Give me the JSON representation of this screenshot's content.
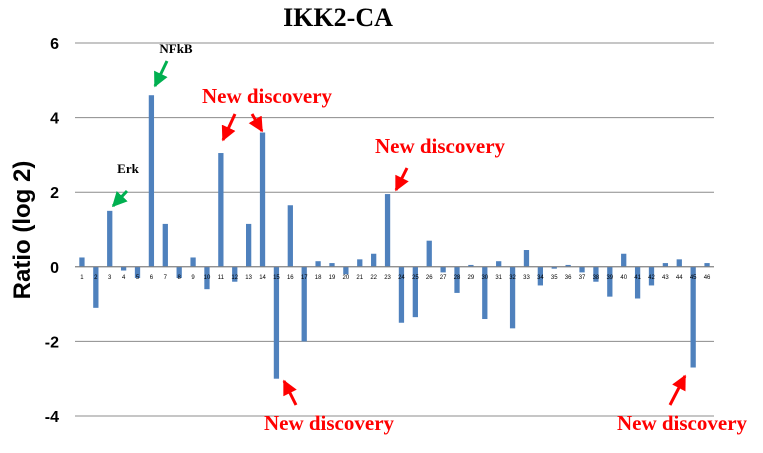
{
  "chart_data": {
    "type": "bar",
    "title": "IKK2-CA",
    "ylabel": "Ratio (log 2)",
    "xlabel": "",
    "ylim": [
      -4,
      6
    ],
    "yticks": [
      -4,
      -2,
      0,
      2,
      4,
      6
    ],
    "grid": true,
    "bar_color": "#4f81bd",
    "categories": [
      "1",
      "2",
      "3",
      "4",
      "5",
      "6",
      "7",
      "8",
      "9",
      "10",
      "11",
      "12",
      "13",
      "14",
      "15",
      "16",
      "17",
      "18",
      "19",
      "20",
      "21",
      "22",
      "23",
      "24",
      "25",
      "26",
      "27",
      "28",
      "29",
      "30",
      "31",
      "32",
      "33",
      "34",
      "35",
      "36",
      "37",
      "38",
      "39",
      "40",
      "41",
      "42",
      "43",
      "44",
      "45",
      "46"
    ],
    "values": [
      0.25,
      -1.1,
      1.5,
      -0.1,
      -0.3,
      4.6,
      1.15,
      -0.3,
      0.25,
      -0.6,
      3.05,
      -0.4,
      1.15,
      3.6,
      -3.0,
      1.65,
      -2.0,
      0.15,
      0.1,
      -0.2,
      0.2,
      0.35,
      1.95,
      -1.5,
      -1.35,
      0.7,
      -0.15,
      -0.7,
      0.05,
      -1.4,
      0.15,
      -1.65,
      0.45,
      -0.5,
      -0.05,
      0.05,
      -0.15,
      -0.4,
      -0.8,
      0.35,
      -0.85,
      -0.5,
      0.1,
      0.2,
      -2.7,
      0.1
    ],
    "annotations": [
      {
        "text": "NFkB",
        "color": "#000000",
        "arrow_color": "#00b050"
      },
      {
        "text": "Erk",
        "color": "#000000",
        "arrow_color": "#00b050"
      },
      {
        "text": "New discovery",
        "color": "#ff0000",
        "arrow_color": "#ff0000"
      },
      {
        "text": "New discovery",
        "color": "#ff0000",
        "arrow_color": "#ff0000"
      },
      {
        "text": "New discovery",
        "color": "#ff0000",
        "arrow_color": "#ff0000"
      },
      {
        "text": "New discovery",
        "color": "#ff0000",
        "arrow_color": "#ff0000"
      }
    ]
  }
}
